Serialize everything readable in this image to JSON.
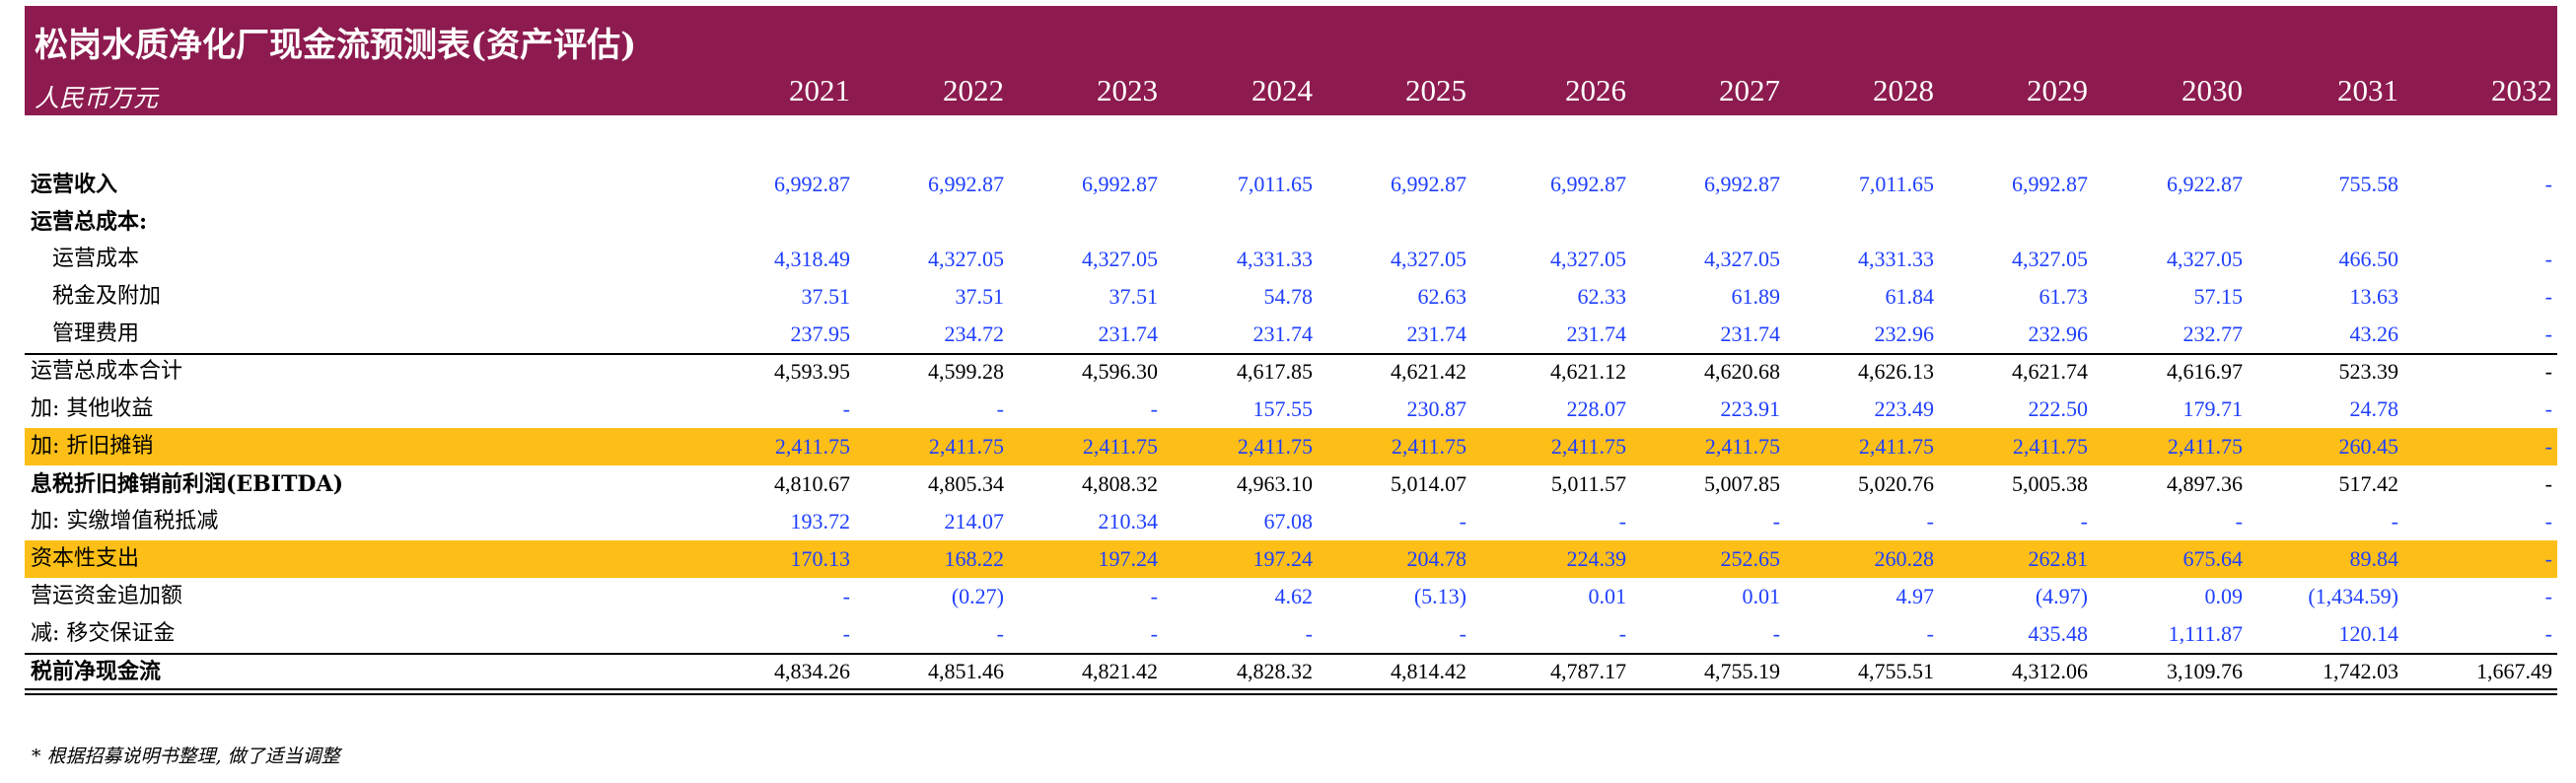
{
  "header": {
    "title": "松岗水质净化厂现金流预测表(资产评估)",
    "unit": "人民币万元",
    "years": [
      "2021",
      "2022",
      "2023",
      "2024",
      "2025",
      "2026",
      "2027",
      "2028",
      "2029",
      "2030",
      "2031",
      "2032"
    ]
  },
  "colors": {
    "banner": "#8d1b4f",
    "highlight": "#fdbf17",
    "input_blue": "#1f3fff"
  },
  "rows": [
    {
      "label": "运营收入",
      "indent": false,
      "bold": true,
      "highlight": false,
      "color": "blue",
      "values": [
        "6,992.87",
        "6,992.87",
        "6,992.87",
        "7,011.65",
        "6,992.87",
        "6,992.87",
        "6,992.87",
        "7,011.65",
        "6,992.87",
        "6,922.87",
        "755.58",
        "-"
      ]
    },
    {
      "label": "运营总成本:",
      "indent": false,
      "bold": true,
      "highlight": false,
      "color": "blue",
      "values": []
    },
    {
      "label": "运营成本",
      "indent": true,
      "bold": false,
      "highlight": false,
      "color": "blue",
      "values": [
        "4,318.49",
        "4,327.05",
        "4,327.05",
        "4,331.33",
        "4,327.05",
        "4,327.05",
        "4,327.05",
        "4,331.33",
        "4,327.05",
        "4,327.05",
        "466.50",
        "-"
      ]
    },
    {
      "label": "税金及附加",
      "indent": true,
      "bold": false,
      "highlight": false,
      "color": "blue",
      "values": [
        "37.51",
        "37.51",
        "37.51",
        "54.78",
        "62.63",
        "62.33",
        "61.89",
        "61.84",
        "61.73",
        "57.15",
        "13.63",
        "-"
      ]
    },
    {
      "label": "管理费用",
      "indent": true,
      "bold": false,
      "highlight": false,
      "color": "blue",
      "values": [
        "237.95",
        "234.72",
        "231.74",
        "231.74",
        "231.74",
        "231.74",
        "231.74",
        "232.96",
        "232.96",
        "232.77",
        "43.26",
        "-"
      ]
    },
    {
      "label": "运营总成本合计",
      "indent": false,
      "bold": false,
      "highlight": false,
      "color": "black",
      "values": [
        "4,593.95",
        "4,599.28",
        "4,596.30",
        "4,617.85",
        "4,621.42",
        "4,621.12",
        "4,620.68",
        "4,626.13",
        "4,621.74",
        "4,616.97",
        "523.39",
        "-"
      ]
    },
    {
      "label": "加: 其他收益",
      "indent": false,
      "bold": false,
      "highlight": false,
      "color": "blue",
      "values": [
        "-",
        "-",
        "-",
        "157.55",
        "230.87",
        "228.07",
        "223.91",
        "223.49",
        "222.50",
        "179.71",
        "24.78",
        "-"
      ]
    },
    {
      "label": "加: 折旧摊销",
      "indent": false,
      "bold": false,
      "highlight": true,
      "color": "blue",
      "values": [
        "2,411.75",
        "2,411.75",
        "2,411.75",
        "2,411.75",
        "2,411.75",
        "2,411.75",
        "2,411.75",
        "2,411.75",
        "2,411.75",
        "2,411.75",
        "260.45",
        "-"
      ]
    },
    {
      "label": "息税折旧摊销前利润(EBITDA)",
      "indent": false,
      "bold": true,
      "highlight": false,
      "color": "black",
      "values": [
        "4,810.67",
        "4,805.34",
        "4,808.32",
        "4,963.10",
        "5,014.07",
        "5,011.57",
        "5,007.85",
        "5,020.76",
        "5,005.38",
        "4,897.36",
        "517.42",
        "-"
      ]
    },
    {
      "label": "加: 实缴增值税抵减",
      "indent": false,
      "bold": false,
      "highlight": false,
      "color": "blue",
      "values": [
        "193.72",
        "214.07",
        "210.34",
        "67.08",
        "-",
        "-",
        "-",
        "-",
        "-",
        "-",
        "-",
        "-"
      ]
    },
    {
      "label": "资本性支出",
      "indent": false,
      "bold": false,
      "highlight": true,
      "color": "blue",
      "values": [
        "170.13",
        "168.22",
        "197.24",
        "197.24",
        "204.78",
        "224.39",
        "252.65",
        "260.28",
        "262.81",
        "675.64",
        "89.84",
        "-"
      ]
    },
    {
      "label": "营运资金追加额",
      "indent": false,
      "bold": false,
      "highlight": false,
      "color": "blue",
      "values": [
        "-",
        "(0.27)",
        "-",
        "4.62",
        "(5.13)",
        "0.01",
        "0.01",
        "4.97",
        "(4.97)",
        "0.09",
        "(1,434.59)",
        "-"
      ]
    },
    {
      "label": "减: 移交保证金",
      "indent": false,
      "bold": false,
      "highlight": false,
      "color": "blue",
      "values": [
        "-",
        "-",
        "-",
        "-",
        "-",
        "-",
        "-",
        "-",
        "435.48",
        "1,111.87",
        "120.14",
        "-"
      ]
    },
    {
      "label": "税前净现金流",
      "indent": false,
      "bold": true,
      "highlight": false,
      "color": "black",
      "values": [
        "4,834.26",
        "4,851.46",
        "4,821.42",
        "4,828.32",
        "4,814.42",
        "4,787.17",
        "4,755.19",
        "4,755.51",
        "4,312.06",
        "3,109.76",
        "1,742.03",
        "1,667.49"
      ]
    }
  ],
  "footnote": "* 根据招募说明书整理, 做了适当调整"
}
